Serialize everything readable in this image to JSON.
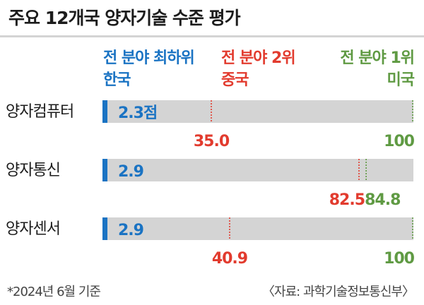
{
  "title": "주요 12개국 양자기술 수준 평가",
  "legend": {
    "lowest": {
      "caption": "전 분야 최하위",
      "country": "한국",
      "color": "#1a73c3"
    },
    "second": {
      "caption": "전 분야 2위",
      "country": "중국",
      "color": "#e23b2e"
    },
    "first": {
      "caption": "전 분야 1위",
      "country": "미국",
      "color": "#5f9a43"
    }
  },
  "chart_data": {
    "type": "bar",
    "title": "주요 12개국 양자기술 수준 평가",
    "xlim": [
      0,
      100
    ],
    "categories": [
      "양자컴퓨터",
      "양자통신",
      "양자센서"
    ],
    "series": [
      {
        "name": "한국",
        "values": [
          2.3,
          2.9,
          2.9
        ],
        "labels": [
          "2.3점",
          "2.9",
          "2.9"
        ],
        "color": "#1a73c3"
      },
      {
        "name": "중국",
        "values": [
          35.0,
          82.5,
          40.9
        ],
        "labels": [
          "35.0",
          "82.5",
          "40.9"
        ],
        "color": "#e23b2e"
      },
      {
        "name": "미국",
        "values": [
          100,
          84.8,
          100
        ],
        "labels": [
          "100",
          "84.8",
          "100"
        ],
        "color": "#5f9a43"
      }
    ],
    "bar_color": "#d4d4d4"
  },
  "footnote": "*2024년 6월 기준",
  "source": "〈자료: 과학기술정보통신부〉"
}
